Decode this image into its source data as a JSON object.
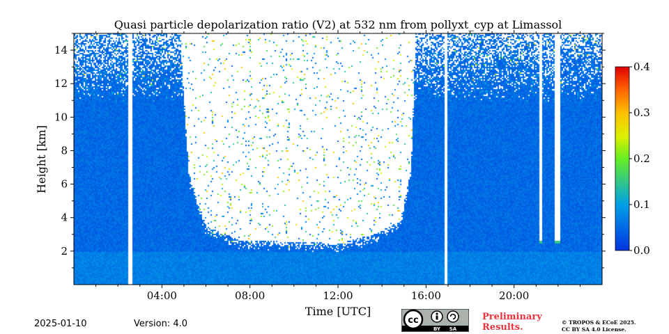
{
  "chart_data": {
    "type": "heatmap",
    "title": "Quasi particle depolarization ratio (V2) at 532 nm from pollyxt_cyp at Limassol",
    "xlabel": "Time [UTC]",
    "ylabel": "Height [km]",
    "xlim": [
      0,
      24
    ],
    "ylim": [
      0,
      15
    ],
    "x_ticks": [
      4,
      8,
      12,
      16,
      20
    ],
    "x_tick_labels": [
      "04:00",
      "08:00",
      "12:00",
      "16:00",
      "20:00"
    ],
    "y_ticks": [
      2,
      4,
      6,
      8,
      10,
      12,
      14
    ],
    "y_tick_labels": [
      "2",
      "4",
      "6",
      "8",
      "10",
      "12",
      "14"
    ],
    "colorbar": {
      "range": [
        0.0,
        0.4
      ],
      "ticks": [
        0.0,
        0.1,
        0.2,
        0.3,
        0.4
      ],
      "tick_labels": [
        "0.0",
        "0.1",
        "0.2",
        "0.3",
        "0.4"
      ],
      "colormap": "jet"
    },
    "field_description_values": {
      "background_value": 0.05,
      "near_surface_layer_value": 0.07,
      "near_surface_layer_top_km": 2.0,
      "no_signal_gaps_utc": [
        [
          2.45,
          2.62
        ],
        [
          16.82,
          16.95
        ]
      ],
      "daytime_noise_region_utc": [
        4.8,
        15.5
      ],
      "daytime_noise_lower_bound_km": [
        [
          4.8,
          15
        ],
        [
          5.2,
          6.5
        ],
        [
          6.0,
          3.5
        ],
        [
          7.5,
          2.7
        ],
        [
          12,
          2.5
        ],
        [
          13.5,
          3.0
        ],
        [
          14.8,
          3.8
        ],
        [
          15.3,
          7.0
        ],
        [
          15.5,
          15
        ]
      ],
      "cloud_gaps_utc": [
        [
          21.1,
          21.25
        ],
        [
          21.8,
          22.1
        ]
      ],
      "cloud_base_km": 2.5,
      "cloud_base_value": 0.15
    },
    "grid": false,
    "legend": "none"
  },
  "footer": {
    "date": "2025-01-10",
    "version": "Version: 4.0",
    "preliminary": [
      "Preliminary",
      "Results."
    ],
    "copyright": [
      "© TROPOS & ECoE 2025.",
      "CC BY SA 4.0 License."
    ],
    "cc_text": {
      "by": "BY",
      "sa": "SA"
    }
  },
  "colors": {
    "colormap_jet": [
      "#00007f",
      "#0000ff",
      "#007fff",
      "#00ffff",
      "#7fff7f",
      "#ffff00",
      "#ff7f00",
      "#ff0000",
      "#7f0000"
    ],
    "preliminary_text": "#e8323c"
  }
}
